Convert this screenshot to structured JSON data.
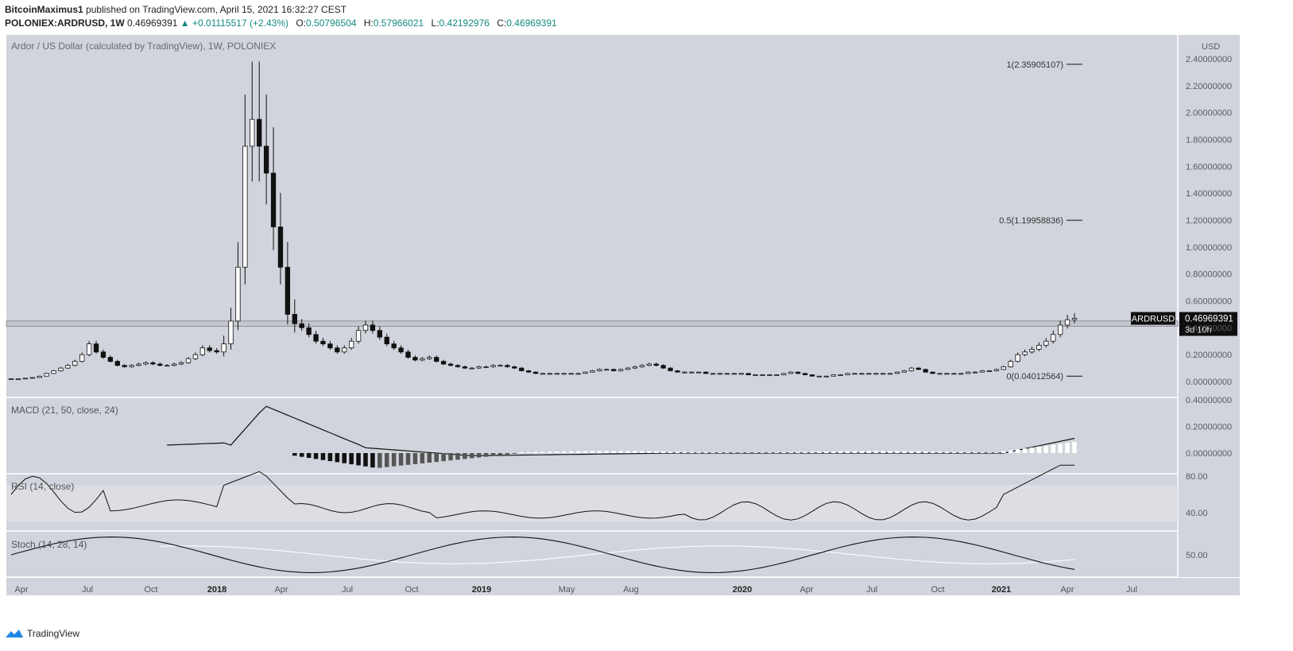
{
  "header": {
    "author": "BitcoinMaximus1",
    "published_text": "published on TradingView.com, April 15, 2021 16:32:27 CEST",
    "symbol_line": "POLONIEX:ARDRUSD, 1W",
    "last": "0.46969391",
    "change_arrow": "▲",
    "change": "+0.01115517 (+2.43%)",
    "o_label": "O:",
    "o": "0.50796504",
    "h_label": "H:",
    "h": "0.57966021",
    "l_label": "L:",
    "l": "0.42192976",
    "c_label": "C:",
    "c": "0.46969391"
  },
  "footer": {
    "brand": "TradingView"
  },
  "colors": {
    "bg": "#d1d4dc",
    "panel_border": "#ffffff",
    "rsi_band": "#dcdee4",
    "accent": "#138a7e",
    "label_bg": "#0f0f0f"
  },
  "chart_data": {
    "type": "candlestick",
    "title": "Ardor / US Dollar (calculated by TradingView), 1W, POLONIEX",
    "currency": "USD",
    "price_ticks": [
      "2.40000000",
      "2.20000000",
      "2.00000000",
      "1.80000000",
      "1.60000000",
      "1.40000000",
      "1.20000000",
      "1.00000000",
      "0.80000000",
      "0.60000000",
      "0.40000000",
      "0.20000000",
      "0.00000000"
    ],
    "ylim": [
      0,
      2.4
    ],
    "x_labels": [
      "Apr",
      "Jul",
      "Oct",
      "2018",
      "Apr",
      "Jul",
      "Oct",
      "2019",
      "May",
      "Aug",
      "2020",
      "Apr",
      "Jul",
      "Oct",
      "2021",
      "Apr",
      "Jul"
    ],
    "fib_levels": [
      {
        "label": "1(2.35905107)",
        "value": 2.35905107
      },
      {
        "label": "0.5(1.19958836)",
        "value": 1.19958836
      },
      {
        "label": "0(0.04012564)",
        "value": 0.04012564
      }
    ],
    "support_zone": [
      0.41,
      0.45
    ],
    "price_label": {
      "symbol": "ARDRUSD",
      "value": "0.46969391",
      "countdown": "3d 10h"
    },
    "series": [
      {
        "name": "ARDRUSD",
        "close": [
          0.02,
          0.02,
          0.025,
          0.03,
          0.04,
          0.06,
          0.08,
          0.1,
          0.12,
          0.15,
          0.2,
          0.28,
          0.22,
          0.18,
          0.15,
          0.12,
          0.11,
          0.12,
          0.13,
          0.14,
          0.13,
          0.12,
          0.12,
          0.13,
          0.14,
          0.17,
          0.2,
          0.25,
          0.23,
          0.22,
          0.28,
          0.45,
          0.85,
          1.75,
          1.95,
          1.75,
          1.55,
          1.15,
          0.85,
          0.5,
          0.43,
          0.4,
          0.35,
          0.3,
          0.28,
          0.25,
          0.22,
          0.25,
          0.3,
          0.38,
          0.42,
          0.38,
          0.33,
          0.28,
          0.25,
          0.22,
          0.18,
          0.16,
          0.17,
          0.18,
          0.15,
          0.13,
          0.12,
          0.11,
          0.1,
          0.1,
          0.11,
          0.11,
          0.12,
          0.12,
          0.11,
          0.1,
          0.08,
          0.07,
          0.06,
          0.06,
          0.06,
          0.06,
          0.06,
          0.06,
          0.06,
          0.07,
          0.08,
          0.09,
          0.09,
          0.08,
          0.09,
          0.1,
          0.11,
          0.12,
          0.13,
          0.12,
          0.1,
          0.08,
          0.07,
          0.07,
          0.07,
          0.07,
          0.06,
          0.06,
          0.06,
          0.06,
          0.06,
          0.06,
          0.05,
          0.05,
          0.05,
          0.05,
          0.05,
          0.06,
          0.07,
          0.06,
          0.05,
          0.04,
          0.04,
          0.04,
          0.05,
          0.05,
          0.06,
          0.06,
          0.06,
          0.06,
          0.06,
          0.06,
          0.06,
          0.07,
          0.08,
          0.1,
          0.09,
          0.07,
          0.06,
          0.06,
          0.06,
          0.06,
          0.06,
          0.07,
          0.07,
          0.08,
          0.08,
          0.09,
          0.11,
          0.15,
          0.2,
          0.22,
          0.24,
          0.27,
          0.3,
          0.35,
          0.42,
          0.46,
          0.47
        ]
      },
      {
        "name": "MACD (21, 50, close, 24)",
        "values": []
      },
      {
        "name": "RSI (14, close)",
        "values": []
      },
      {
        "name": "Stoch (14, 28, 14)",
        "values": []
      }
    ],
    "macd": {
      "label": "MACD (21, 50, close, 24)",
      "ticks": [
        "0.40000000",
        "0.20000000",
        "0.00000000"
      ]
    },
    "rsi": {
      "label": "RSI (14, close)",
      "ticks": [
        "80.00",
        "40.00"
      ]
    },
    "stoch": {
      "label": "Stoch (14, 28, 14)",
      "ticks": [
        "50.00"
      ]
    }
  }
}
